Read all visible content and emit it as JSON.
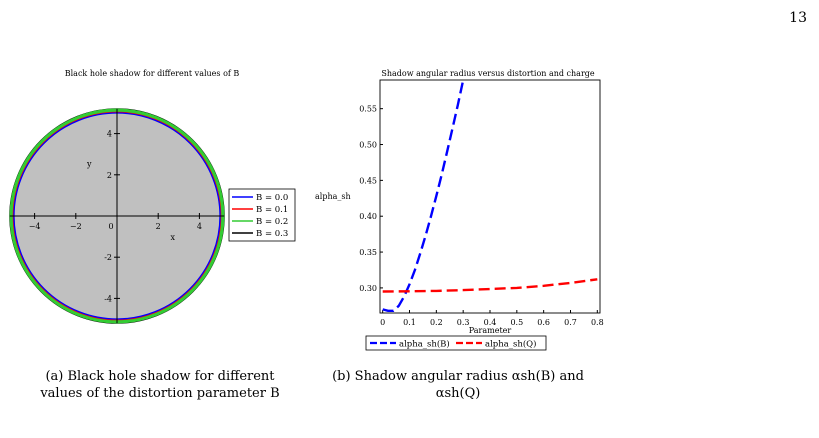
{
  "page_number": "13",
  "figures": [
    {
      "title": "Black hole shadow for different values of B",
      "caption_lines": [
        "(a) Black hole shadow for different",
        "values of the distortion parameter B"
      ]
    },
    {
      "title": "Shadow angular radius versus distortion and charge",
      "caption_lines": [
        "(b) Shadow angular radius αsh(B) and",
        "αsh(Q)"
      ]
    }
  ],
  "colors": {
    "blue": "#0000ff",
    "red": "#ff0000",
    "green": "#33cc33",
    "black": "#000000",
    "fill": "#c0c0c0"
  },
  "chart_data": [
    {
      "type": "line",
      "title": "Black hole shadow for different values of B",
      "xlabel": "x",
      "ylabel": "y",
      "xlim": [
        -5.2,
        5.2
      ],
      "ylim": [
        -5.2,
        5.2
      ],
      "x_ticks": [
        "−4",
        "−2",
        "0",
        "2",
        "4"
      ],
      "y_ticks": [
        "4",
        "2",
        "-2",
        "-4"
      ],
      "legend_position": "right",
      "series": [
        {
          "name": "B = 0.0",
          "color": "#0000ff",
          "radius": 5.0
        },
        {
          "name": "B = 0.1",
          "color": "#ff0000",
          "radius": 5.03
        },
        {
          "name": "B = 0.2",
          "color": "#33cc33",
          "radius": 5.12
        },
        {
          "name": "B = 0.3",
          "color": "#000000",
          "radius": 5.2
        }
      ]
    },
    {
      "type": "line",
      "title": "Shadow angular radius versus distortion and charge",
      "xlabel": "Parameter",
      "ylabel": "alpha_sh",
      "xlim": [
        -0.01,
        0.81
      ],
      "ylim": [
        0.265,
        0.59
      ],
      "x_ticks": [
        "0",
        "0.1",
        "0.2",
        "0.3",
        "0.4",
        "0.5",
        "0.6",
        "0.7",
        "0.8"
      ],
      "y_ticks": [
        "0.30",
        "0.35",
        "0.40",
        "0.45",
        "0.50",
        "0.55"
      ],
      "legend_position": "bottom",
      "series": [
        {
          "name": "alpha_sh(B)",
          "color": "#0000ff",
          "x": [
            0,
            0.02,
            0.04,
            0.06,
            0.08,
            0.1,
            0.12,
            0.14,
            0.16,
            0.18,
            0.2,
            0.22,
            0.24,
            0.26,
            0.28,
            0.3
          ],
          "y": [
            0.27,
            0.268,
            0.268,
            0.275,
            0.288,
            0.305,
            0.325,
            0.348,
            0.373,
            0.4,
            0.428,
            0.458,
            0.49,
            0.522,
            0.555,
            0.59
          ]
        },
        {
          "name": "alpha_sh(Q)",
          "color": "#ff0000",
          "x": [
            0,
            0.1,
            0.2,
            0.3,
            0.4,
            0.5,
            0.6,
            0.7,
            0.8
          ],
          "y": [
            0.295,
            0.2952,
            0.2958,
            0.297,
            0.2985,
            0.3,
            0.303,
            0.307,
            0.312
          ]
        }
      ]
    }
  ]
}
